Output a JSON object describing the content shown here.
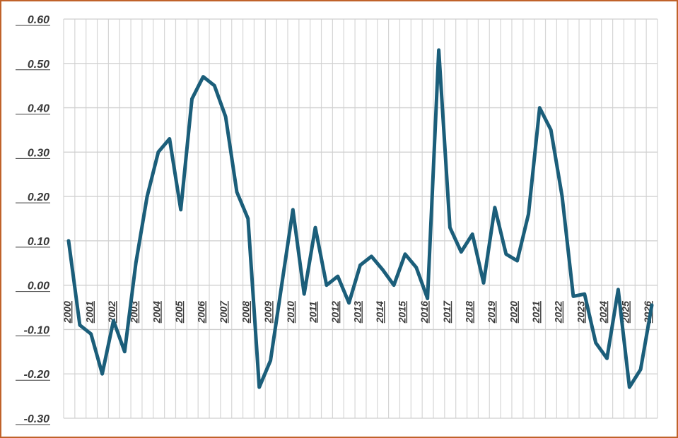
{
  "chart_data": {
    "type": "line",
    "title": "",
    "xlabel": "",
    "ylabel": "",
    "ylim": [
      -0.3,
      0.6
    ],
    "yticks": [
      "0.60",
      "0.50",
      "0.40",
      "0.30",
      "0.20",
      "0.10",
      "0.00",
      "-0.10",
      "-0.20",
      "-0.30"
    ],
    "year_labels": [
      "2000",
      "2001",
      "2002",
      "2003",
      "2004",
      "2005",
      "2006",
      "2007",
      "2008",
      "2009",
      "2010",
      "2011",
      "2012",
      "2013",
      "2014",
      "2015",
      "2016",
      "2017",
      "2018",
      "2019",
      "2020",
      "2021",
      "2022",
      "2023",
      "2024",
      "2025",
      "2026"
    ],
    "grid": true,
    "legend": "none",
    "series_color": "#1b5e7a",
    "series": [
      {
        "values": [
          0.1,
          -0.09,
          -0.11,
          -0.2,
          -0.08,
          -0.15,
          0.05,
          0.2,
          0.3,
          0.33,
          0.17,
          0.42,
          0.47,
          0.45,
          0.38,
          0.21,
          0.15,
          -0.23,
          -0.17,
          0.0,
          0.17,
          -0.02,
          0.13,
          0.0,
          0.02,
          -0.04,
          0.045,
          0.065,
          0.035,
          0.0,
          0.07,
          0.04,
          -0.03,
          0.53,
          0.13,
          0.075,
          0.115,
          0.005,
          0.175,
          0.07,
          0.055,
          0.16,
          0.4,
          0.35,
          0.2,
          -0.025,
          -0.02,
          -0.13,
          -0.165,
          -0.01,
          -0.23,
          -0.19,
          -0.045
        ]
      }
    ]
  }
}
